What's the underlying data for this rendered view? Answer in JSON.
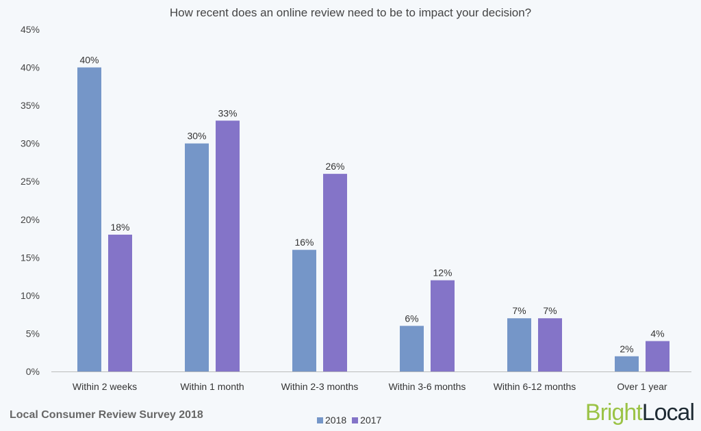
{
  "chart_data": {
    "type": "bar",
    "title": "How recent does an online review need to be to impact your decision?",
    "categories": [
      "Within 2 weeks",
      "Within 1 month",
      "Within 2-3 months",
      "Within 3-6 months",
      "Within 6-12 months",
      "Over 1 year"
    ],
    "series": [
      {
        "name": "2018",
        "color": "#7596c8",
        "values": [
          40,
          30,
          16,
          6,
          7,
          2
        ],
        "labels": [
          "40%",
          "30%",
          "16%",
          "6%",
          "7%",
          "2%"
        ]
      },
      {
        "name": "2017",
        "color": "#8474c8",
        "values": [
          18,
          33,
          26,
          12,
          7,
          4
        ],
        "labels": [
          "18%",
          "33%",
          "26%",
          "12%",
          "7%",
          "4%"
        ]
      }
    ],
    "ylim": [
      0,
      45
    ],
    "yticks": [
      "0%",
      "5%",
      "10%",
      "15%",
      "20%",
      "25%",
      "30%",
      "35%",
      "40%",
      "45%"
    ],
    "grid": false,
    "legend_placement": "bottom"
  },
  "footer": {
    "source": "Local Consumer Review Survey 2018"
  },
  "logo": {
    "part1": "Bright",
    "part2": "Local"
  }
}
